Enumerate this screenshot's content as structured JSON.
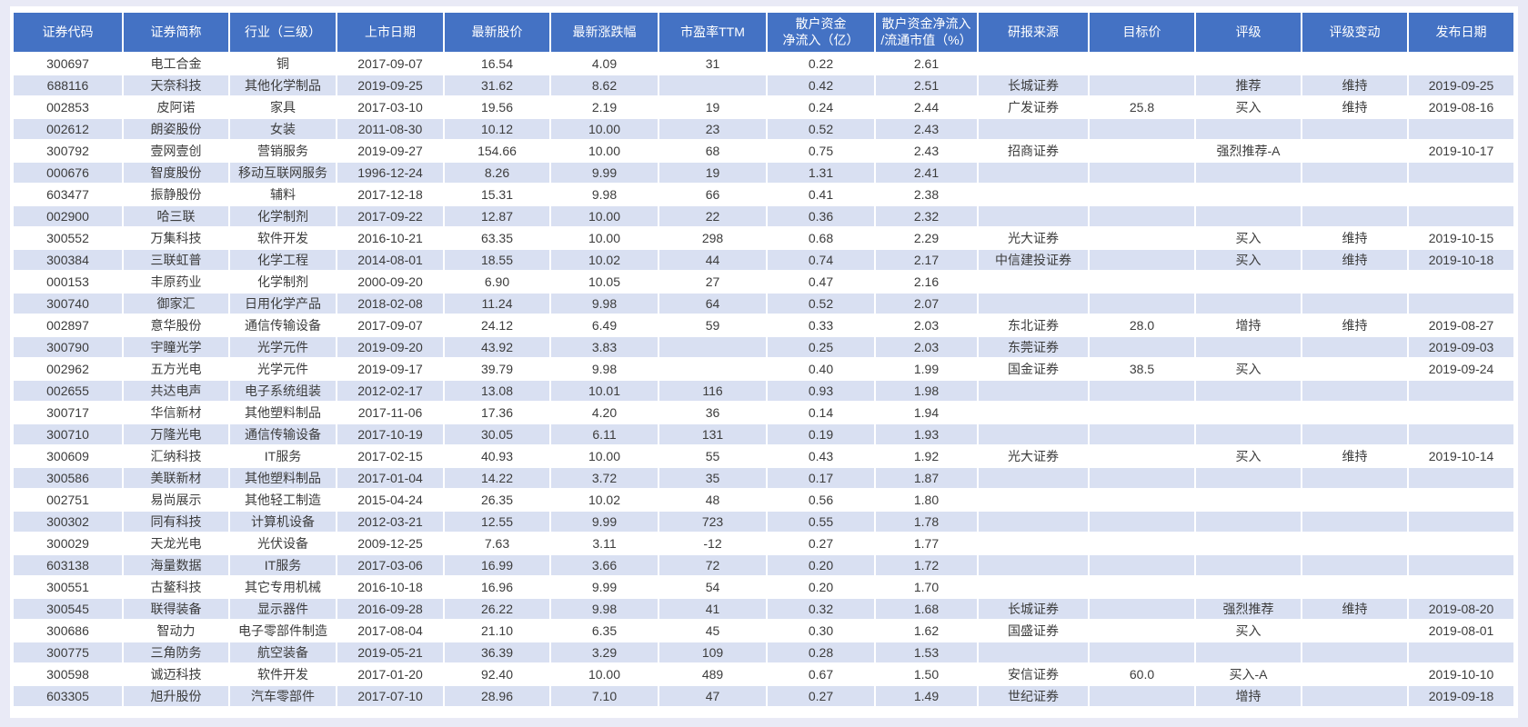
{
  "page": {
    "background": "#E9EAF6",
    "panel_background": "#FFFFFF"
  },
  "table": {
    "header_background": "#4472C4",
    "header_text_color": "#FFFFFF",
    "banded_row_background": "#D9E0F2",
    "cell_text_color": "#3C3C3C",
    "columns": [
      {
        "key": "code",
        "label": "证券代码"
      },
      {
        "key": "name",
        "label": "证券简称"
      },
      {
        "key": "industry",
        "label": "行业（三级）"
      },
      {
        "key": "listing_date",
        "label": "上市日期"
      },
      {
        "key": "latest_price",
        "label": "最新股价"
      },
      {
        "key": "change_pct",
        "label": "最新涨跌幅"
      },
      {
        "key": "pe_ttm",
        "label": "市盈率TTM"
      },
      {
        "key": "retail_inflow",
        "label": "散户资金\n净流入（亿）"
      },
      {
        "key": "inflow_ratio",
        "label": "散户资金净流入\n/流通市值（%）"
      },
      {
        "key": "report_source",
        "label": "研报来源"
      },
      {
        "key": "target_price",
        "label": "目标价"
      },
      {
        "key": "rating",
        "label": "评级"
      },
      {
        "key": "rating_change",
        "label": "评级变动"
      },
      {
        "key": "publish_date",
        "label": "发布日期"
      }
    ],
    "rows": [
      [
        "300697",
        "电工合金",
        "铜",
        "2017-09-07",
        "16.54",
        "4.09",
        "31",
        "0.22",
        "2.61",
        "",
        "",
        "",
        "",
        ""
      ],
      [
        "688116",
        "天奈科技",
        "其他化学制品",
        "2019-09-25",
        "31.62",
        "8.62",
        "",
        "0.42",
        "2.51",
        "长城证券",
        "",
        "推荐",
        "维持",
        "2019-09-25"
      ],
      [
        "002853",
        "皮阿诺",
        "家具",
        "2017-03-10",
        "19.56",
        "2.19",
        "19",
        "0.24",
        "2.44",
        "广发证券",
        "25.8",
        "买入",
        "维持",
        "2019-08-16"
      ],
      [
        "002612",
        "朗姿股份",
        "女装",
        "2011-08-30",
        "10.12",
        "10.00",
        "23",
        "0.52",
        "2.43",
        "",
        "",
        "",
        "",
        ""
      ],
      [
        "300792",
        "壹网壹创",
        "营销服务",
        "2019-09-27",
        "154.66",
        "10.00",
        "68",
        "0.75",
        "2.43",
        "招商证券",
        "",
        "强烈推荐-A",
        "",
        "2019-10-17"
      ],
      [
        "000676",
        "智度股份",
        "移动互联网服务",
        "1996-12-24",
        "8.26",
        "9.99",
        "19",
        "1.31",
        "2.41",
        "",
        "",
        "",
        "",
        ""
      ],
      [
        "603477",
        "振静股份",
        "辅料",
        "2017-12-18",
        "15.31",
        "9.98",
        "66",
        "0.41",
        "2.38",
        "",
        "",
        "",
        "",
        ""
      ],
      [
        "002900",
        "哈三联",
        "化学制剂",
        "2017-09-22",
        "12.87",
        "10.00",
        "22",
        "0.36",
        "2.32",
        "",
        "",
        "",
        "",
        ""
      ],
      [
        "300552",
        "万集科技",
        "软件开发",
        "2016-10-21",
        "63.35",
        "10.00",
        "298",
        "0.68",
        "2.29",
        "光大证券",
        "",
        "买入",
        "维持",
        "2019-10-15"
      ],
      [
        "300384",
        "三联虹普",
        "化学工程",
        "2014-08-01",
        "18.55",
        "10.02",
        "44",
        "0.74",
        "2.17",
        "中信建投证券",
        "",
        "买入",
        "维持",
        "2019-10-18"
      ],
      [
        "000153",
        "丰原药业",
        "化学制剂",
        "2000-09-20",
        "6.90",
        "10.05",
        "27",
        "0.47",
        "2.16",
        "",
        "",
        "",
        "",
        ""
      ],
      [
        "300740",
        "御家汇",
        "日用化学产品",
        "2018-02-08",
        "11.24",
        "9.98",
        "64",
        "0.52",
        "2.07",
        "",
        "",
        "",
        "",
        ""
      ],
      [
        "002897",
        "意华股份",
        "通信传输设备",
        "2017-09-07",
        "24.12",
        "6.49",
        "59",
        "0.33",
        "2.03",
        "东北证券",
        "28.0",
        "增持",
        "维持",
        "2019-08-27"
      ],
      [
        "300790",
        "宇瞳光学",
        "光学元件",
        "2019-09-20",
        "43.92",
        "3.83",
        "",
        "0.25",
        "2.03",
        "东莞证券",
        "",
        "",
        "",
        "2019-09-03"
      ],
      [
        "002962",
        "五方光电",
        "光学元件",
        "2019-09-17",
        "39.79",
        "9.98",
        "",
        "0.40",
        "1.99",
        "国金证券",
        "38.5",
        "买入",
        "",
        "2019-09-24"
      ],
      [
        "002655",
        "共达电声",
        "电子系统组装",
        "2012-02-17",
        "13.08",
        "10.01",
        "116",
        "0.93",
        "1.98",
        "",
        "",
        "",
        "",
        ""
      ],
      [
        "300717",
        "华信新材",
        "其他塑料制品",
        "2017-11-06",
        "17.36",
        "4.20",
        "36",
        "0.14",
        "1.94",
        "",
        "",
        "",
        "",
        ""
      ],
      [
        "300710",
        "万隆光电",
        "通信传输设备",
        "2017-10-19",
        "30.05",
        "6.11",
        "131",
        "0.19",
        "1.93",
        "",
        "",
        "",
        "",
        ""
      ],
      [
        "300609",
        "汇纳科技",
        "IT服务",
        "2017-02-15",
        "40.93",
        "10.00",
        "55",
        "0.43",
        "1.92",
        "光大证券",
        "",
        "买入",
        "维持",
        "2019-10-14"
      ],
      [
        "300586",
        "美联新材",
        "其他塑料制品",
        "2017-01-04",
        "14.22",
        "3.72",
        "35",
        "0.17",
        "1.87",
        "",
        "",
        "",
        "",
        ""
      ],
      [
        "002751",
        "易尚展示",
        "其他轻工制造",
        "2015-04-24",
        "26.35",
        "10.02",
        "48",
        "0.56",
        "1.80",
        "",
        "",
        "",
        "",
        ""
      ],
      [
        "300302",
        "同有科技",
        "计算机设备",
        "2012-03-21",
        "12.55",
        "9.99",
        "723",
        "0.55",
        "1.78",
        "",
        "",
        "",
        "",
        ""
      ],
      [
        "300029",
        "天龙光电",
        "光伏设备",
        "2009-12-25",
        "7.63",
        "3.11",
        "-12",
        "0.27",
        "1.77",
        "",
        "",
        "",
        "",
        ""
      ],
      [
        "603138",
        "海量数据",
        "IT服务",
        "2017-03-06",
        "16.99",
        "3.66",
        "72",
        "0.20",
        "1.72",
        "",
        "",
        "",
        "",
        ""
      ],
      [
        "300551",
        "古鳌科技",
        "其它专用机械",
        "2016-10-18",
        "16.96",
        "9.99",
        "54",
        "0.20",
        "1.70",
        "",
        "",
        "",
        "",
        ""
      ],
      [
        "300545",
        "联得装备",
        "显示器件",
        "2016-09-28",
        "26.22",
        "9.98",
        "41",
        "0.32",
        "1.68",
        "长城证券",
        "",
        "强烈推荐",
        "维持",
        "2019-08-20"
      ],
      [
        "300686",
        "智动力",
        "电子零部件制造",
        "2017-08-04",
        "21.10",
        "6.35",
        "45",
        "0.30",
        "1.62",
        "国盛证券",
        "",
        "买入",
        "",
        "2019-08-01"
      ],
      [
        "300775",
        "三角防务",
        "航空装备",
        "2019-05-21",
        "36.39",
        "3.29",
        "109",
        "0.28",
        "1.53",
        "",
        "",
        "",
        "",
        ""
      ],
      [
        "300598",
        "诚迈科技",
        "软件开发",
        "2017-01-20",
        "92.40",
        "10.00",
        "489",
        "0.67",
        "1.50",
        "安信证券",
        "60.0",
        "买入-A",
        "",
        "2019-10-10"
      ],
      [
        "603305",
        "旭升股份",
        "汽车零部件",
        "2017-07-10",
        "28.96",
        "7.10",
        "47",
        "0.27",
        "1.49",
        "世纪证券",
        "",
        "增持",
        "",
        "2019-09-18"
      ]
    ]
  }
}
